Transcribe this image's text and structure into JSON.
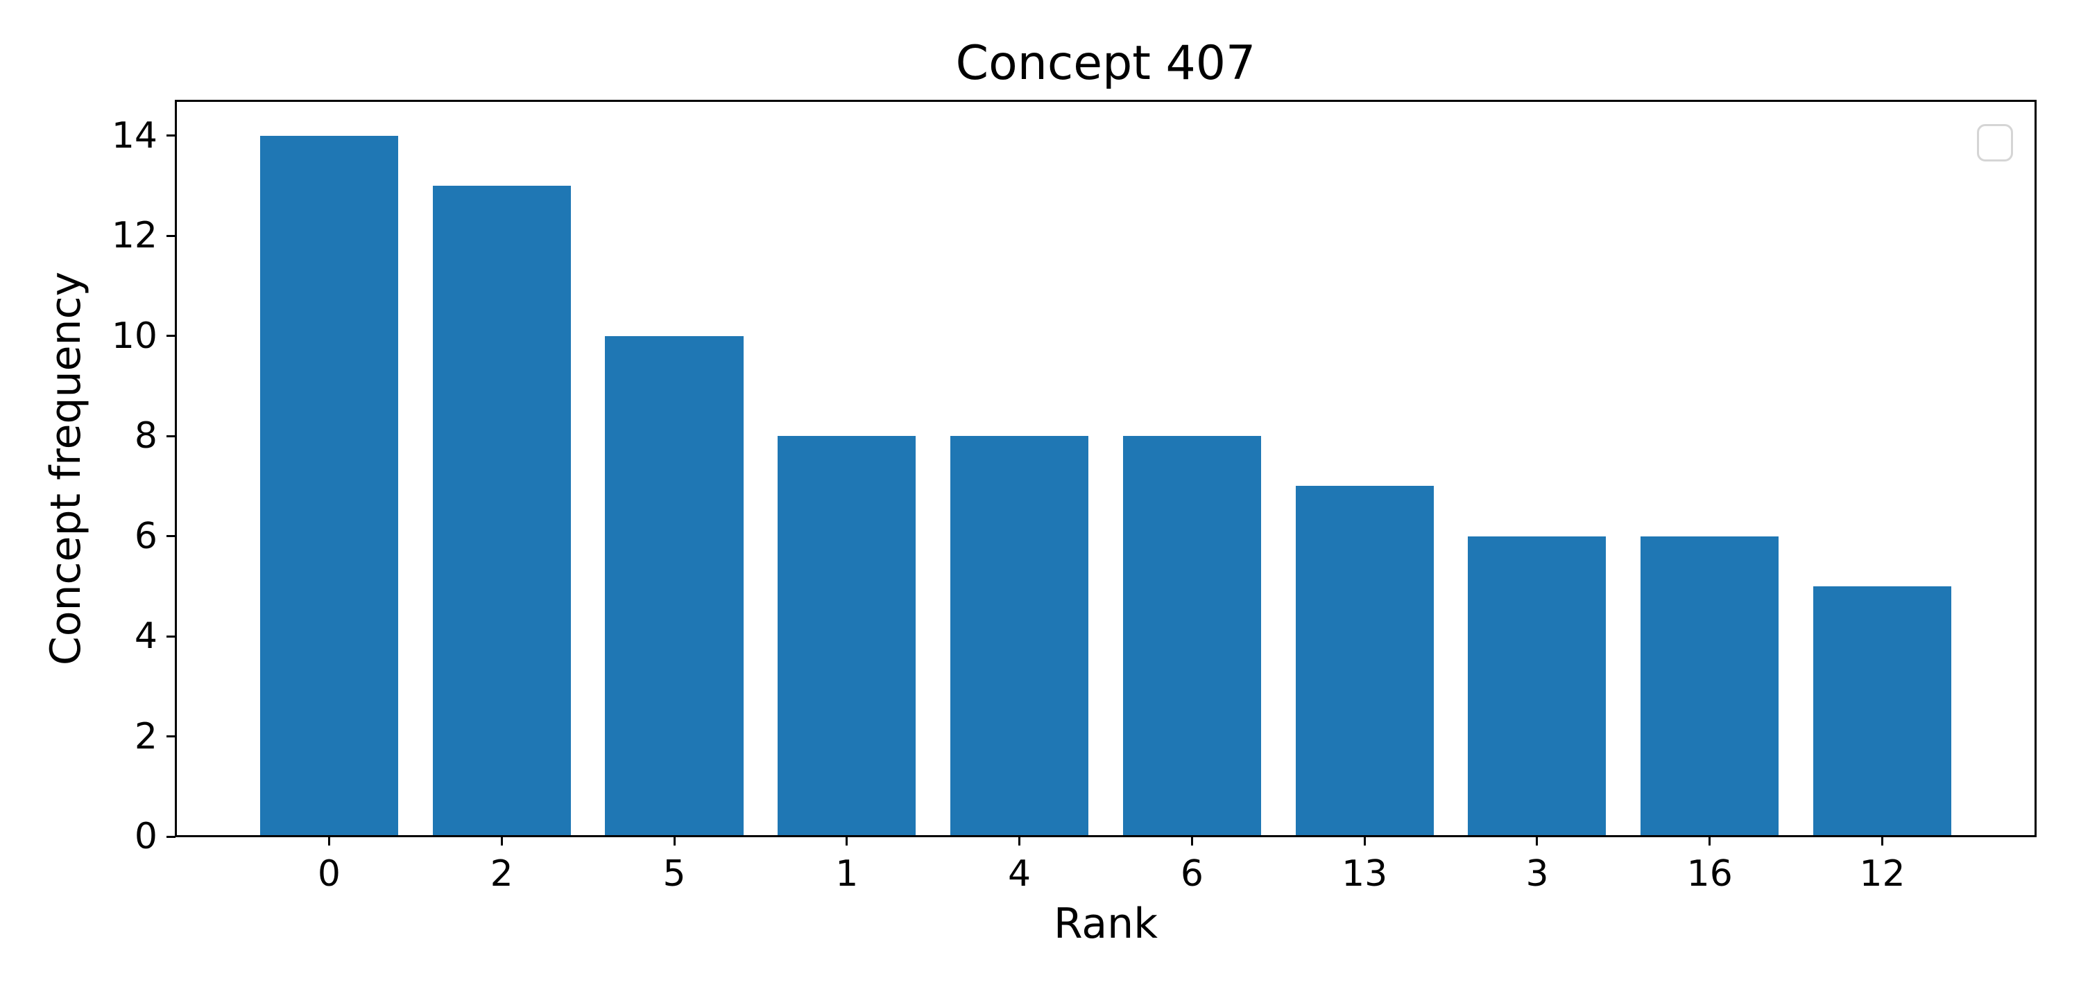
{
  "figure": {
    "background": "#ffffff"
  },
  "chart_data": {
    "type": "bar",
    "title": "Concept 407",
    "xlabel": "Rank",
    "ylabel": "Concept frequency",
    "categories": [
      "0",
      "2",
      "5",
      "1",
      "4",
      "6",
      "13",
      "3",
      "16",
      "12"
    ],
    "values": [
      14,
      13,
      10,
      8,
      8,
      8,
      7,
      6,
      6,
      5
    ],
    "bar_color": "#1f77b4",
    "yticks": [
      0,
      2,
      4,
      6,
      8,
      10,
      12,
      14
    ],
    "ylim": [
      0,
      14.7
    ],
    "xlim": [
      -0.89,
      9.89
    ],
    "bar_width_units": 0.8,
    "grid": false,
    "legend": {
      "visible": true,
      "entries": [],
      "position": "upper right",
      "border_color": "#d5d5d5"
    }
  }
}
